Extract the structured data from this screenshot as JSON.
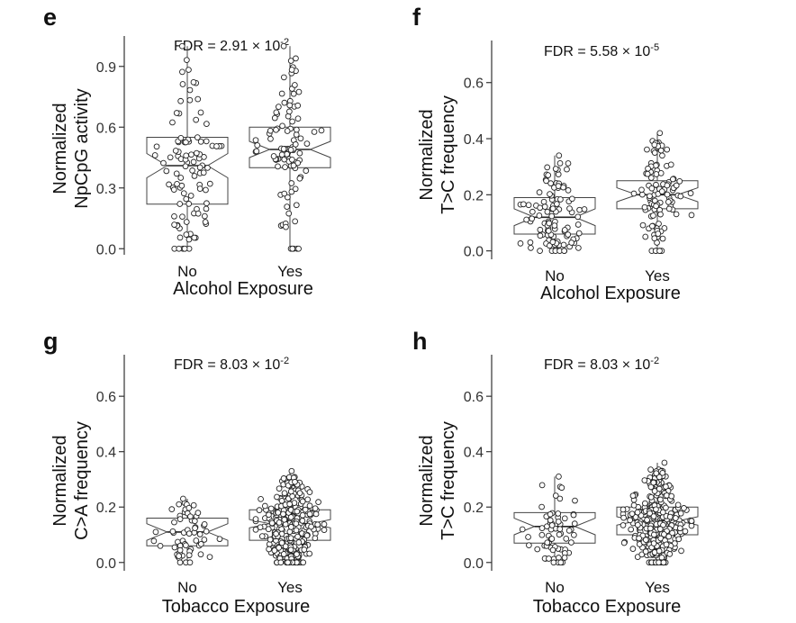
{
  "chart_data": [
    {
      "panel": "e",
      "type": "box",
      "fdr": {
        "prefix": "FDR = 2.91 × 10",
        "exp": "-2"
      },
      "xlabel": "Alcohol Exposure",
      "ylabel": [
        "Normalized",
        "NpCpG activity"
      ],
      "categories": [
        "No",
        "Yes"
      ],
      "ylim": [
        -0.03,
        1.05
      ],
      "yticks": [
        0.0,
        0.3,
        0.6,
        0.9
      ],
      "ytick_labels": [
        "0.0",
        "0.3",
        "0.6",
        "0.9"
      ],
      "boxes": [
        {
          "q1": 0.22,
          "median": 0.41,
          "q3": 0.55,
          "notch": 0.06,
          "whislo": 0.0,
          "whishi": 1.0,
          "n": 95
        },
        {
          "q1": 0.4,
          "median": 0.49,
          "q3": 0.6,
          "notch": 0.04,
          "whislo": 0.0,
          "whishi": 1.0,
          "n": 95
        }
      ]
    },
    {
      "panel": "f",
      "type": "box",
      "fdr": {
        "prefix": "FDR = 5.58 × 10",
        "exp": "-5"
      },
      "xlabel": "Alcohol Exposure",
      "ylabel": [
        "Normalized",
        "T>C frequency"
      ],
      "categories": [
        "No",
        "Yes"
      ],
      "ylim": [
        -0.03,
        0.75
      ],
      "yticks": [
        0.0,
        0.2,
        0.4,
        0.6
      ],
      "ytick_labels": [
        "0.0",
        "0.2",
        "0.4",
        "0.6"
      ],
      "boxes": [
        {
          "q1": 0.06,
          "median": 0.12,
          "q3": 0.19,
          "notch": 0.03,
          "whislo": 0.0,
          "whishi": 0.34,
          "n": 100
        },
        {
          "q1": 0.15,
          "median": 0.2,
          "q3": 0.25,
          "notch": 0.025,
          "whislo": 0.0,
          "whishi": 0.42,
          "n": 100
        }
      ]
    },
    {
      "panel": "g",
      "type": "box",
      "fdr": {
        "prefix": "FDR = 8.03 × 10",
        "exp": "-2"
      },
      "xlabel": "Tobacco Exposure",
      "ylabel": [
        "Normalized",
        "C>A frequency"
      ],
      "categories": [
        "No",
        "Yes"
      ],
      "ylim": [
        -0.03,
        0.75
      ],
      "yticks": [
        0.0,
        0.2,
        0.4,
        0.6
      ],
      "ytick_labels": [
        "0.0",
        "0.2",
        "0.4",
        "0.6"
      ],
      "boxes": [
        {
          "q1": 0.06,
          "median": 0.11,
          "q3": 0.16,
          "notch": 0.03,
          "whislo": 0.0,
          "whishi": 0.23,
          "n": 55
        },
        {
          "q1": 0.08,
          "median": 0.14,
          "q3": 0.19,
          "notch": 0.015,
          "whislo": 0.0,
          "whishi": 0.33,
          "n": 320
        }
      ]
    },
    {
      "panel": "h",
      "type": "box",
      "fdr": {
        "prefix": "FDR = 8.03 × 10",
        "exp": "-2"
      },
      "xlabel": "Tobacco Exposure",
      "ylabel": [
        "Normalized",
        "T>C frequency"
      ],
      "categories": [
        "No",
        "Yes"
      ],
      "ylim": [
        -0.03,
        0.75
      ],
      "yticks": [
        0.0,
        0.2,
        0.4,
        0.6
      ],
      "ytick_labels": [
        "0.0",
        "0.2",
        "0.4",
        "0.6"
      ],
      "boxes": [
        {
          "q1": 0.07,
          "median": 0.13,
          "q3": 0.18,
          "notch": 0.03,
          "whislo": 0.0,
          "whishi": 0.31,
          "n": 60
        },
        {
          "q1": 0.1,
          "median": 0.15,
          "q3": 0.2,
          "notch": 0.015,
          "whislo": 0.0,
          "whishi": 0.36,
          "n": 320
        }
      ]
    }
  ]
}
